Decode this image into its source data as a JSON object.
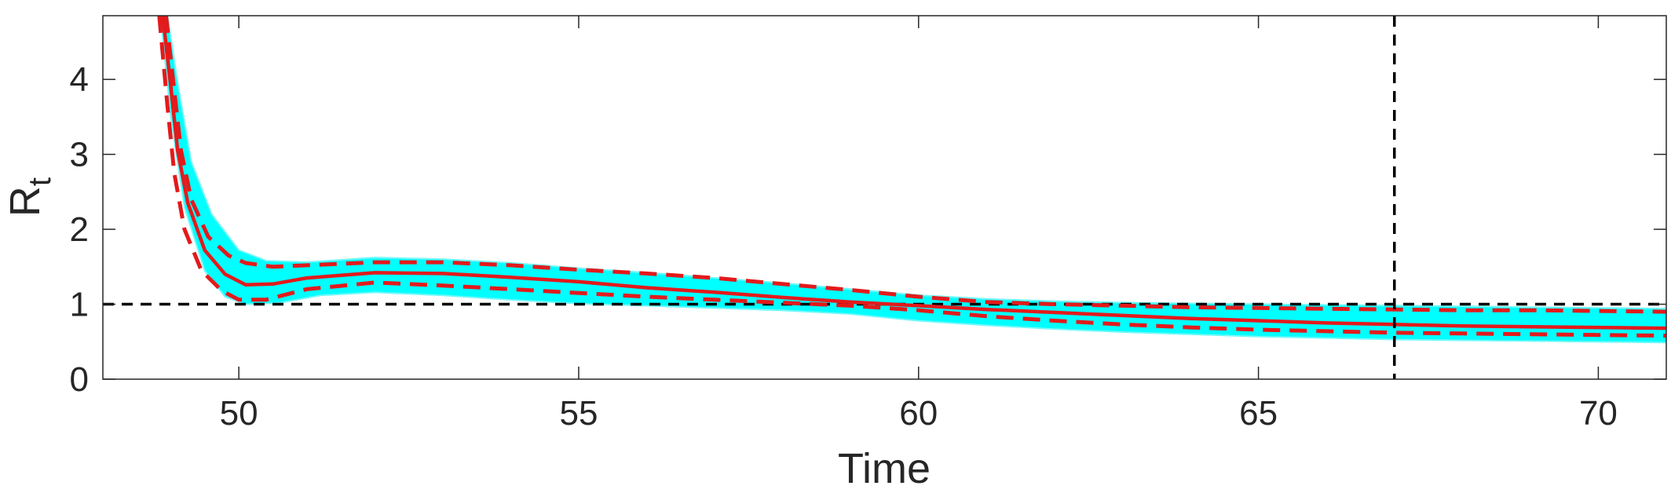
{
  "chart_data": {
    "type": "line",
    "title": "",
    "xlabel": "Time",
    "ylabel": "R",
    "ylabel_subscript": "t",
    "xlim": [
      48,
      71
    ],
    "ylim": [
      0,
      4.85
    ],
    "xticks": [
      "50",
      "55",
      "60",
      "65",
      "70"
    ],
    "yticks": [
      "0",
      "1",
      "2",
      "3",
      "4"
    ],
    "grid": false,
    "legend": "none",
    "reference_lines": {
      "horizontal_y": 1,
      "vertical_x": 67,
      "style": "dashed",
      "color": "#000000"
    },
    "colors": {
      "ensemble": "#00ffff",
      "median": "#e31a1c",
      "bounds": "#e31a1c",
      "reference": "#000000"
    },
    "series": [
      {
        "role": "ensemble-upper",
        "x": [
          48.95,
          49.1,
          49.3,
          49.6,
          50.0,
          50.4,
          51.0,
          52.0,
          53.0,
          54.0,
          55.0,
          56.0,
          57.0,
          58.0,
          59.0,
          60.0,
          61.0,
          62.0,
          63.0,
          64.0,
          65.0,
          66.0,
          67.0,
          68.0,
          69.0,
          70.0,
          71.0
        ],
        "values": [
          4.85,
          3.95,
          2.9,
          2.2,
          1.72,
          1.58,
          1.56,
          1.62,
          1.6,
          1.55,
          1.48,
          1.42,
          1.35,
          1.28,
          1.2,
          1.12,
          1.07,
          1.04,
          1.02,
          1.01,
          1.0,
          0.99,
          0.98,
          0.97,
          0.96,
          0.95,
          0.94
        ]
      },
      {
        "role": "ensemble-lower",
        "x": [
          48.85,
          49.0,
          49.2,
          49.5,
          49.8,
          50.1,
          50.6,
          51.2,
          52.0,
          53.0,
          54.0,
          55.0,
          56.0,
          57.0,
          58.0,
          59.0,
          60.0,
          61.0,
          62.0,
          63.0,
          64.0,
          65.0,
          66.0,
          67.0,
          68.0,
          69.0,
          70.0,
          71.0
        ],
        "values": [
          4.85,
          3.5,
          2.3,
          1.45,
          1.1,
          1.0,
          1.02,
          1.12,
          1.16,
          1.12,
          1.06,
          1.01,
          0.98,
          0.95,
          0.92,
          0.87,
          0.78,
          0.72,
          0.67,
          0.63,
          0.6,
          0.57,
          0.55,
          0.53,
          0.52,
          0.51,
          0.5,
          0.49
        ]
      },
      {
        "role": "median",
        "x": [
          48.88,
          49.0,
          49.1,
          49.25,
          49.5,
          49.8,
          50.1,
          50.5,
          51.0,
          52.0,
          53.0,
          54.0,
          55.0,
          56.0,
          57.0,
          58.0,
          59.0,
          60.0,
          61.0,
          62.0,
          63.0,
          64.0,
          65.0,
          66.0,
          67.0,
          68.0,
          69.0,
          70.0,
          71.0
        ],
        "values": [
          4.85,
          3.9,
          3.05,
          2.35,
          1.72,
          1.4,
          1.26,
          1.27,
          1.35,
          1.42,
          1.41,
          1.36,
          1.3,
          1.22,
          1.16,
          1.09,
          1.03,
          0.98,
          0.93,
          0.89,
          0.85,
          0.81,
          0.78,
          0.75,
          0.73,
          0.71,
          0.7,
          0.69,
          0.68
        ]
      },
      {
        "role": "upper-bound",
        "x": [
          48.93,
          49.05,
          49.15,
          49.3,
          49.55,
          49.85,
          50.1,
          50.5,
          51.0,
          52.0,
          53.0,
          54.0,
          55.0,
          56.0,
          57.0,
          58.0,
          59.0,
          60.0,
          61.0,
          62.0,
          63.0,
          64.0,
          65.0,
          66.0,
          67.0,
          68.0,
          69.0,
          70.0,
          71.0
        ],
        "values": [
          4.85,
          3.85,
          3.05,
          2.4,
          1.9,
          1.65,
          1.55,
          1.5,
          1.52,
          1.56,
          1.56,
          1.52,
          1.46,
          1.41,
          1.35,
          1.27,
          1.19,
          1.1,
          1.03,
          1.0,
          0.98,
          0.96,
          0.95,
          0.94,
          0.93,
          0.92,
          0.92,
          0.91,
          0.9
        ]
      },
      {
        "role": "lower-bound",
        "x": [
          48.83,
          48.95,
          49.05,
          49.2,
          49.45,
          49.75,
          50.0,
          50.4,
          51.0,
          52.0,
          53.0,
          54.0,
          55.0,
          56.0,
          57.0,
          58.0,
          59.0,
          60.0,
          61.0,
          62.0,
          63.0,
          64.0,
          65.0,
          66.0,
          67.0,
          68.0,
          69.0,
          70.0,
          71.0
        ],
        "values": [
          4.85,
          3.65,
          2.75,
          2.0,
          1.45,
          1.18,
          1.06,
          1.06,
          1.2,
          1.29,
          1.25,
          1.2,
          1.15,
          1.1,
          1.06,
          1.02,
          0.98,
          0.92,
          0.84,
          0.78,
          0.73,
          0.69,
          0.66,
          0.64,
          0.62,
          0.61,
          0.6,
          0.59,
          0.58
        ]
      }
    ]
  }
}
